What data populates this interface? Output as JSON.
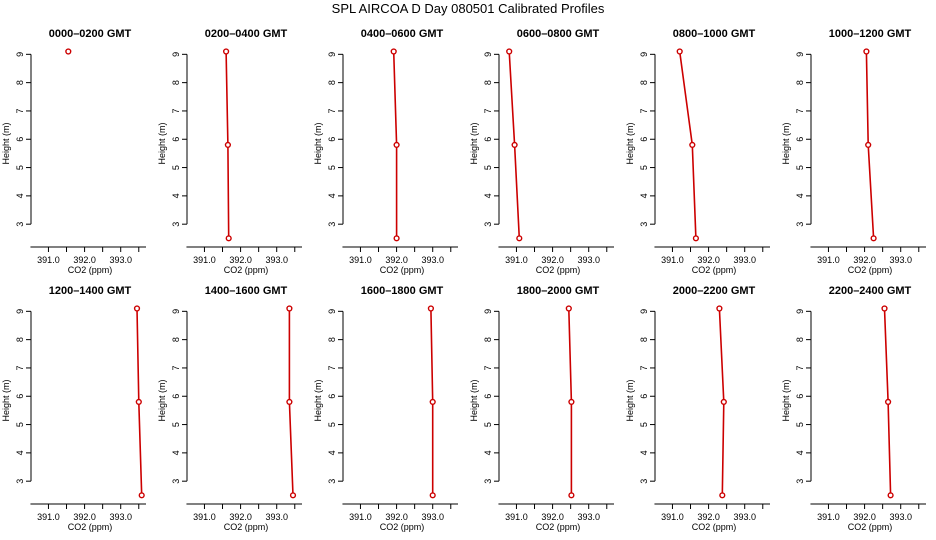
{
  "figure": {
    "title": "SPL AIRCOA D  Day 080501  Calibrated Profiles"
  },
  "chart_data": [
    {
      "type": "line",
      "title": "0000–0200 GMT",
      "xlabel": "CO2 (ppm)",
      "ylabel": "Height (m)",
      "xlim": [
        390.6,
        393.7
      ],
      "ylim": [
        2.3,
        9.4
      ],
      "x_ticks": [
        "391.0",
        "392.0",
        "393.0"
      ],
      "y_ticks": [
        "3",
        "4",
        "5",
        "6",
        "7",
        "8",
        "9"
      ],
      "color": "#cc0000",
      "series": [
        {
          "x": [
            391.55
          ],
          "y": [
            9.1
          ]
        }
      ]
    },
    {
      "type": "line",
      "title": "0200–0400 GMT",
      "xlabel": "CO2 (ppm)",
      "ylabel": "Height (m)",
      "xlim": [
        390.6,
        393.7
      ],
      "ylim": [
        2.3,
        9.4
      ],
      "x_ticks": [
        "391.0",
        "392.0",
        "393.0"
      ],
      "y_ticks": [
        "3",
        "4",
        "5",
        "6",
        "7",
        "8",
        "9"
      ],
      "color": "#cc0000",
      "series": [
        {
          "x": [
            391.6,
            391.65,
            391.67
          ],
          "y": [
            9.1,
            5.8,
            2.5
          ]
        }
      ]
    },
    {
      "type": "line",
      "title": "0400–0600 GMT",
      "xlabel": "CO2 (ppm)",
      "ylabel": "Height (m)",
      "xlim": [
        390.6,
        393.7
      ],
      "ylim": [
        2.3,
        9.4
      ],
      "x_ticks": [
        "391.0",
        "392.0",
        "393.0"
      ],
      "y_ticks": [
        "3",
        "4",
        "5",
        "6",
        "7",
        "8",
        "9"
      ],
      "color": "#cc0000",
      "series": [
        {
          "x": [
            391.92,
            392.0,
            392.0
          ],
          "y": [
            9.1,
            5.8,
            2.5
          ]
        }
      ]
    },
    {
      "type": "line",
      "title": "0600–0800 GMT",
      "xlabel": "CO2 (ppm)",
      "ylabel": "Height (m)",
      "xlim": [
        390.6,
        393.7
      ],
      "ylim": [
        2.3,
        9.4
      ],
      "x_ticks": [
        "391.0",
        "392.0",
        "393.0"
      ],
      "y_ticks": [
        "3",
        "4",
        "5",
        "6",
        "7",
        "8",
        "9"
      ],
      "color": "#cc0000",
      "series": [
        {
          "x": [
            390.8,
            390.95,
            391.08
          ],
          "y": [
            9.1,
            5.8,
            2.5
          ]
        }
      ]
    },
    {
      "type": "line",
      "title": "0800–1000 GMT",
      "xlabel": "CO2 (ppm)",
      "ylabel": "Height (m)",
      "xlim": [
        390.6,
        393.7
      ],
      "ylim": [
        2.3,
        9.4
      ],
      "x_ticks": [
        "391.0",
        "392.0",
        "393.0"
      ],
      "y_ticks": [
        "3",
        "4",
        "5",
        "6",
        "7",
        "8",
        "9"
      ],
      "color": "#cc0000",
      "series": [
        {
          "x": [
            391.2,
            391.55,
            391.65
          ],
          "y": [
            9.1,
            5.8,
            2.5
          ]
        }
      ]
    },
    {
      "type": "line",
      "title": "1000–1200 GMT",
      "xlabel": "CO2 (ppm)",
      "ylabel": "Height (m)",
      "xlim": [
        390.6,
        393.7
      ],
      "ylim": [
        2.3,
        9.4
      ],
      "x_ticks": [
        "391.0",
        "392.0",
        "393.0"
      ],
      "y_ticks": [
        "3",
        "4",
        "5",
        "6",
        "7",
        "8",
        "9"
      ],
      "color": "#cc0000",
      "series": [
        {
          "x": [
            392.05,
            392.1,
            392.25
          ],
          "y": [
            9.1,
            5.8,
            2.5
          ]
        }
      ]
    },
    {
      "type": "line",
      "title": "1200–1400 GMT",
      "xlabel": "CO2 (ppm)",
      "ylabel": "Height (m)",
      "xlim": [
        390.6,
        393.7
      ],
      "ylim": [
        2.3,
        9.4
      ],
      "x_ticks": [
        "391.0",
        "392.0",
        "393.0"
      ],
      "y_ticks": [
        "3",
        "4",
        "5",
        "6",
        "7",
        "8",
        "9"
      ],
      "color": "#cc0000",
      "series": [
        {
          "x": [
            393.45,
            393.5,
            393.58
          ],
          "y": [
            9.1,
            5.8,
            2.5
          ]
        }
      ]
    },
    {
      "type": "line",
      "title": "1400–1600 GMT",
      "xlabel": "CO2 (ppm)",
      "ylabel": "Height (m)",
      "xlim": [
        390.6,
        393.7
      ],
      "ylim": [
        2.3,
        9.4
      ],
      "x_ticks": [
        "391.0",
        "392.0",
        "393.0"
      ],
      "y_ticks": [
        "3",
        "4",
        "5",
        "6",
        "7",
        "8",
        "9"
      ],
      "color": "#cc0000",
      "series": [
        {
          "x": [
            393.35,
            393.35,
            393.45
          ],
          "y": [
            9.1,
            5.8,
            2.5
          ]
        }
      ]
    },
    {
      "type": "line",
      "title": "1600–1800 GMT",
      "xlabel": "CO2 (ppm)",
      "ylabel": "Height (m)",
      "xlim": [
        390.6,
        393.7
      ],
      "ylim": [
        2.3,
        9.4
      ],
      "x_ticks": [
        "391.0",
        "392.0",
        "393.0"
      ],
      "y_ticks": [
        "3",
        "4",
        "5",
        "6",
        "7",
        "8",
        "9"
      ],
      "color": "#cc0000",
      "series": [
        {
          "x": [
            392.95,
            393.0,
            393.0
          ],
          "y": [
            9.1,
            5.8,
            2.5
          ]
        }
      ]
    },
    {
      "type": "line",
      "title": "1800–2000 GMT",
      "xlabel": "CO2 (ppm)",
      "ylabel": "Height (m)",
      "xlim": [
        390.6,
        393.7
      ],
      "ylim": [
        2.3,
        9.4
      ],
      "x_ticks": [
        "391.0",
        "392.0",
        "393.0"
      ],
      "y_ticks": [
        "3",
        "4",
        "5",
        "6",
        "7",
        "8",
        "9"
      ],
      "color": "#cc0000",
      "series": [
        {
          "x": [
            392.45,
            392.52,
            392.52
          ],
          "y": [
            9.1,
            5.8,
            2.5
          ]
        }
      ]
    },
    {
      "type": "line",
      "title": "2000–2200 GMT",
      "xlabel": "CO2 (ppm)",
      "ylabel": "Height (m)",
      "xlim": [
        390.6,
        393.7
      ],
      "ylim": [
        2.3,
        9.4
      ],
      "x_ticks": [
        "391.0",
        "392.0",
        "393.0"
      ],
      "y_ticks": [
        "3",
        "4",
        "5",
        "6",
        "7",
        "8",
        "9"
      ],
      "color": "#cc0000",
      "series": [
        {
          "x": [
            392.3,
            392.42,
            392.38
          ],
          "y": [
            9.1,
            5.8,
            2.5
          ]
        }
      ]
    },
    {
      "type": "line",
      "title": "2200–2400 GMT",
      "xlabel": "CO2 (ppm)",
      "ylabel": "Height (m)",
      "xlim": [
        390.6,
        393.7
      ],
      "ylim": [
        2.3,
        9.4
      ],
      "x_ticks": [
        "391.0",
        "392.0",
        "393.0"
      ],
      "y_ticks": [
        "3",
        "4",
        "5",
        "6",
        "7",
        "8",
        "9"
      ],
      "color": "#cc0000",
      "series": [
        {
          "x": [
            392.55,
            392.65,
            392.72
          ],
          "y": [
            9.1,
            5.8,
            2.5
          ]
        }
      ]
    }
  ]
}
